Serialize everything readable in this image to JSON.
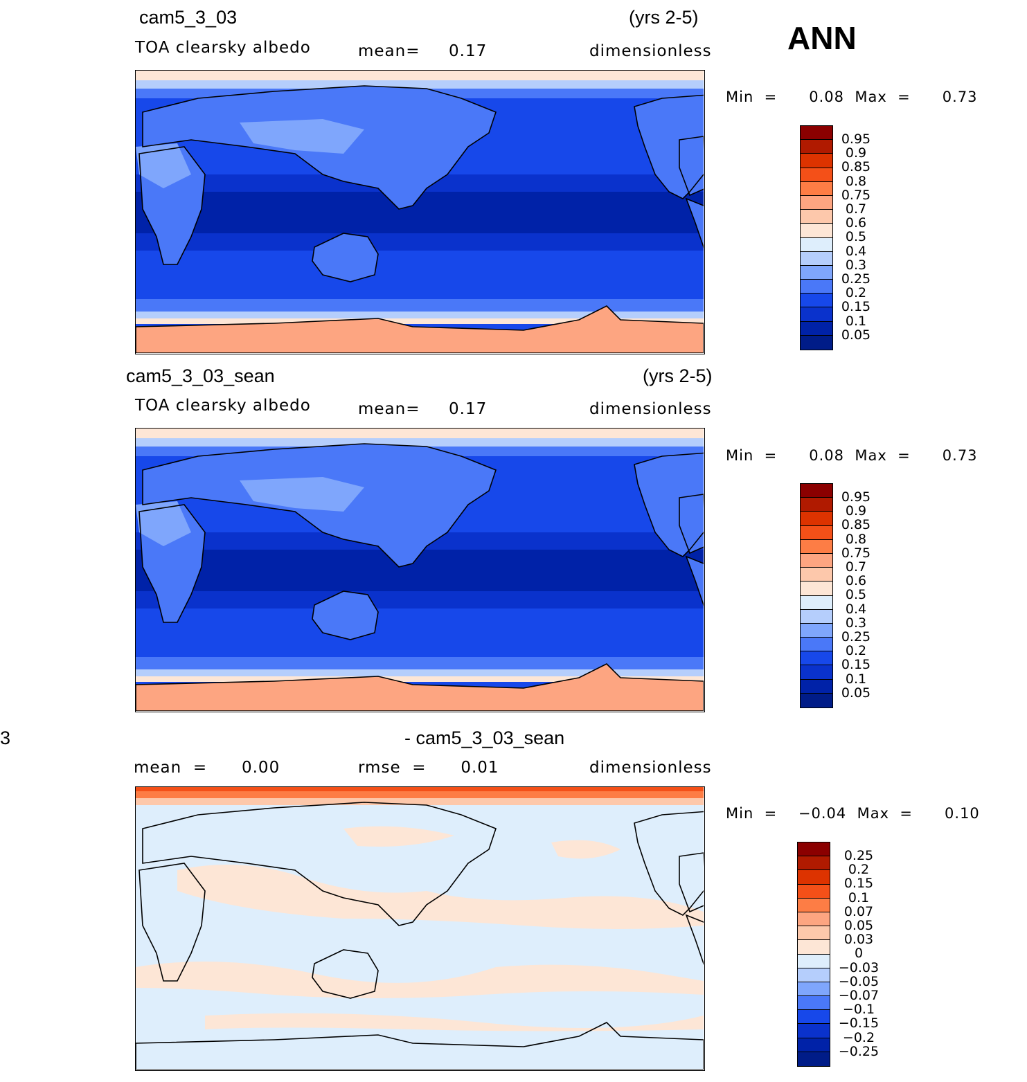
{
  "annual_label": "ANN",
  "panels": [
    {
      "case_title": "cam5_3_03",
      "years": "(yrs 2-5)",
      "variable": "TOA clearsky albedo",
      "stat_text": "mean=     0.17",
      "units": "dimensionless",
      "range_text": "Min  =      0.08  Max  =      0.73",
      "colorbar": {
        "labels": [
          "0.95",
          "0.9",
          "0.85",
          "0.8",
          "0.75",
          "0.7",
          "0.6",
          "0.5",
          "0.4",
          "0.3",
          "0.25",
          "0.2",
          "0.15",
          "0.1",
          "0.05"
        ],
        "colors": [
          "#8b0000",
          "#b01a00",
          "#dd3300",
          "#f45018",
          "#fd7d45",
          "#fda581",
          "#fdc8ab",
          "#fde6d6",
          "#deeefc",
          "#b5cefc",
          "#7fa6fc",
          "#4a78f8",
          "#1748ea",
          "#0a32cc",
          "#0022a8",
          "#001c88"
        ]
      }
    },
    {
      "case_title": "cam5_3_03_sean",
      "years": "(yrs 2-5)",
      "variable": "TOA clearsky albedo",
      "stat_text": "mean=     0.17",
      "units": "dimensionless",
      "range_text": "Min  =      0.08  Max  =      0.73",
      "colorbar": {
        "labels": [
          "0.95",
          "0.9",
          "0.85",
          "0.8",
          "0.75",
          "0.7",
          "0.6",
          "0.5",
          "0.4",
          "0.3",
          "0.25",
          "0.2",
          "0.15",
          "0.1",
          "0.05"
        ],
        "colors": [
          "#8b0000",
          "#b01a00",
          "#dd3300",
          "#f45018",
          "#fd7d45",
          "#fda581",
          "#fdc8ab",
          "#fde6d6",
          "#deeefc",
          "#b5cefc",
          "#7fa6fc",
          "#4a78f8",
          "#1748ea",
          "#0a32cc",
          "#0022a8",
          "#001c88"
        ]
      }
    },
    {
      "case_title_left": "3",
      "case_title": "- cam5_3_03_sean",
      "mean_text": "mean  =      0.00",
      "stat_text": "rmse  =      0.01",
      "units": "dimensionless",
      "range_text": "Min  =    −0.04  Max  =      0.10",
      "colorbar": {
        "labels": [
          "0.25",
          "0.2",
          "0.15",
          "0.1",
          "0.07",
          "0.05",
          "0.03",
          "0",
          "−0.03",
          "−0.05",
          "−0.07",
          "−0.1",
          "−0.15",
          "−0.2",
          "−0.25"
        ],
        "colors": [
          "#8b0000",
          "#b01a00",
          "#dd3300",
          "#f45018",
          "#fd7d45",
          "#fda581",
          "#fdc8ab",
          "#fde6d6",
          "#deeefc",
          "#b5cefc",
          "#7fa6fc",
          "#4a78f8",
          "#1748ea",
          "#0a32cc",
          "#0022a8",
          "#001c88"
        ]
      }
    }
  ]
}
